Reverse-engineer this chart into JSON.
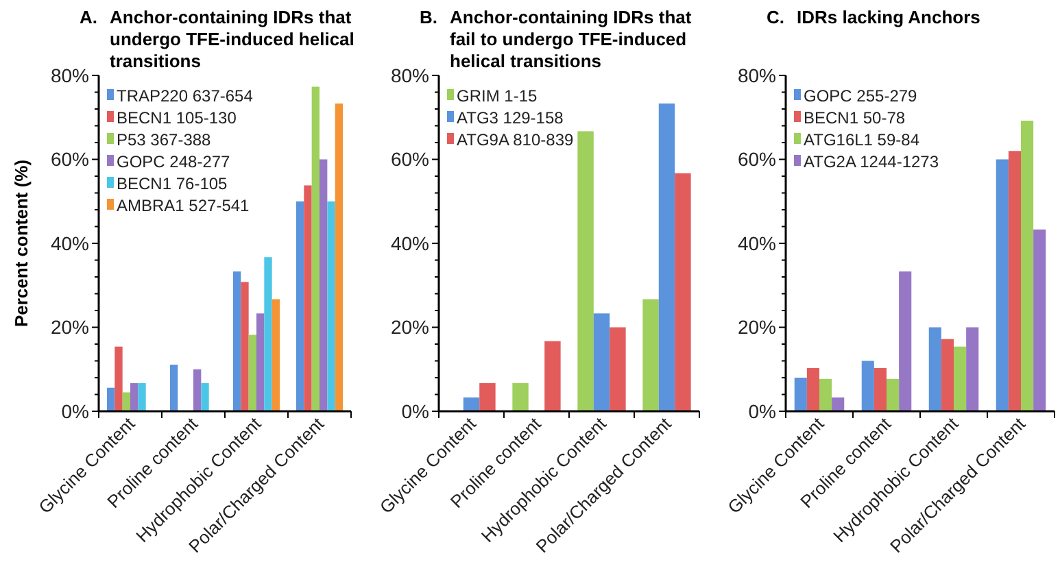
{
  "chart_data": [
    {
      "type": "bar",
      "title": "A. Anchor-containing IDRs that undergo TFE-induced helical transitions",
      "ylabel": "Percent content (%)",
      "categories": [
        "Glycine Content",
        "Proline content",
        "Hydrophobic Content",
        "Polar/Charged Content"
      ],
      "ylim": [
        0,
        80
      ],
      "yticks": [
        {
          "value": 0,
          "label": "0%"
        },
        {
          "value": 4,
          "label": null
        },
        {
          "value": 8,
          "label": null
        },
        {
          "value": 12,
          "label": null
        },
        {
          "value": 16,
          "label": null
        },
        {
          "value": 20,
          "label": "20%"
        },
        {
          "value": 24,
          "label": null
        },
        {
          "value": 28,
          "label": null
        },
        {
          "value": 32,
          "label": null
        },
        {
          "value": 36,
          "label": null
        },
        {
          "value": 40,
          "label": "40%"
        },
        {
          "value": 44,
          "label": null
        },
        {
          "value": 48,
          "label": null
        },
        {
          "value": 52,
          "label": null
        },
        {
          "value": 56,
          "label": null
        },
        {
          "value": 60,
          "label": "60%"
        },
        {
          "value": 64,
          "label": null
        },
        {
          "value": 68,
          "label": null
        },
        {
          "value": 72,
          "label": null
        },
        {
          "value": 76,
          "label": null
        },
        {
          "value": 80,
          "label": "80%"
        }
      ],
      "legend": "top left",
      "grid": false,
      "series": [
        {
          "name": "TRAP220 637-654",
          "color": "#5b93dc",
          "values": [
            5.6,
            11.1,
            33.3,
            50
          ]
        },
        {
          "name": "BECN1 105-130",
          "color": "#e35c5c",
          "values": [
            15.4,
            0,
            30.8,
            53.8
          ]
        },
        {
          "name": "P53 367-388",
          "color": "#9fcf5c",
          "values": [
            4.5,
            0,
            18.2,
            77.3
          ]
        },
        {
          "name": "GOPC 248-277",
          "color": "#9677c6",
          "values": [
            6.7,
            10,
            23.3,
            60
          ]
        },
        {
          "name": "BECN1 76-105",
          "color": "#4cc6e6",
          "values": [
            6.7,
            6.7,
            36.7,
            50
          ]
        },
        {
          "name": "AMBRA1 527-541",
          "color": "#f59435",
          "values": [
            0,
            0,
            26.7,
            73.3
          ]
        }
      ]
    },
    {
      "type": "bar",
      "title": "B. Anchor-containing IDRs that fail to undergo TFE-induced helical transitions",
      "categories": [
        "Glycine Content",
        "Proline content",
        "Hydrophobic Content",
        "Polar/Charged Content"
      ],
      "ylim": [
        0,
        80
      ],
      "yticks": [
        {
          "value": 0,
          "label": "0%"
        },
        {
          "value": 4,
          "label": null
        },
        {
          "value": 8,
          "label": null
        },
        {
          "value": 12,
          "label": null
        },
        {
          "value": 16,
          "label": null
        },
        {
          "value": 20,
          "label": "20%"
        },
        {
          "value": 24,
          "label": null
        },
        {
          "value": 28,
          "label": null
        },
        {
          "value": 32,
          "label": null
        },
        {
          "value": 36,
          "label": null
        },
        {
          "value": 40,
          "label": "40%"
        },
        {
          "value": 44,
          "label": null
        },
        {
          "value": 48,
          "label": null
        },
        {
          "value": 52,
          "label": null
        },
        {
          "value": 56,
          "label": null
        },
        {
          "value": 60,
          "label": "60%"
        },
        {
          "value": 64,
          "label": null
        },
        {
          "value": 68,
          "label": null
        },
        {
          "value": 72,
          "label": null
        },
        {
          "value": 76,
          "label": null
        },
        {
          "value": 80,
          "label": "80%"
        }
      ],
      "legend": "top left",
      "grid": false,
      "series": [
        {
          "name": "GRIM 1-15",
          "color": "#9fcf5c",
          "values": [
            0,
            6.7,
            66.7,
            26.7
          ]
        },
        {
          "name": "ATG3 129-158",
          "color": "#5b93dc",
          "values": [
            3.3,
            0,
            23.3,
            73.3
          ]
        },
        {
          "name": "ATG9A 810-839",
          "color": "#e35c5c",
          "values": [
            6.7,
            16.7,
            20,
            56.7
          ]
        }
      ]
    },
    {
      "type": "bar",
      "title": "C. IDRs lacking Anchors",
      "categories": [
        "Glycine Content",
        "Proline content",
        "Hydrophobic Content",
        "Polar/Charged Content"
      ],
      "ylim": [
        0,
        80
      ],
      "yticks": [
        {
          "value": 0,
          "label": "0%"
        },
        {
          "value": 4,
          "label": null
        },
        {
          "value": 8,
          "label": null
        },
        {
          "value": 12,
          "label": null
        },
        {
          "value": 16,
          "label": null
        },
        {
          "value": 20,
          "label": "20%"
        },
        {
          "value": 24,
          "label": null
        },
        {
          "value": 28,
          "label": null
        },
        {
          "value": 32,
          "label": null
        },
        {
          "value": 36,
          "label": null
        },
        {
          "value": 40,
          "label": "40%"
        },
        {
          "value": 44,
          "label": null
        },
        {
          "value": 48,
          "label": null
        },
        {
          "value": 52,
          "label": null
        },
        {
          "value": 56,
          "label": null
        },
        {
          "value": 60,
          "label": "60%"
        },
        {
          "value": 64,
          "label": null
        },
        {
          "value": 68,
          "label": null
        },
        {
          "value": 72,
          "label": null
        },
        {
          "value": 76,
          "label": null
        },
        {
          "value": 80,
          "label": "80%"
        }
      ],
      "legend": "top left",
      "grid": false,
      "series": [
        {
          "name": "GOPC 255-279",
          "color": "#5b93dc",
          "values": [
            8,
            12,
            20,
            60
          ]
        },
        {
          "name": "BECN1  50-78",
          "color": "#e35c5c",
          "values": [
            10.3,
            10.3,
            17.2,
            62
          ]
        },
        {
          "name": "ATG16L1 59-84",
          "color": "#9fcf5c",
          "values": [
            7.7,
            7.7,
            15.4,
            69.2
          ]
        },
        {
          "name": "ATG2A 1244-1273",
          "color": "#9677c6",
          "values": [
            3.3,
            33.3,
            20,
            43.3
          ]
        }
      ]
    }
  ]
}
